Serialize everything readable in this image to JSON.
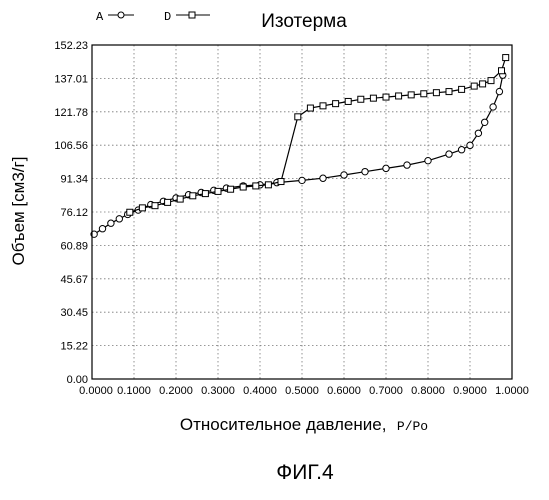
{
  "chart_data": {
    "type": "line",
    "title": "Изотерма",
    "xlabel": "Относительное давление,",
    "xlabel_suffix": "P/Po",
    "ylabel": "Объем [см3/г]",
    "caption": "ФИГ.4",
    "xlim": [
      0,
      1
    ],
    "ylim": [
      0,
      152.23
    ],
    "x_ticks": [
      "0.0000",
      "0.1000",
      "0.2000",
      "0.3000",
      "0.4000",
      "0.5000",
      "0.6000",
      "0.7000",
      "0.8000",
      "0.9000",
      "1.0000"
    ],
    "x_tick_values": [
      0,
      0.1,
      0.2,
      0.3,
      0.4,
      0.5,
      0.6,
      0.7,
      0.8,
      0.9,
      1.0
    ],
    "y_ticks": [
      "0.00",
      "15.22",
      "30.45",
      "45.67",
      "60.89",
      "76.12",
      "91.34",
      "106.56",
      "121.78",
      "137.01",
      "152.23"
    ],
    "y_tick_values": [
      0,
      15.22,
      30.45,
      45.67,
      60.89,
      76.12,
      91.34,
      106.56,
      121.78,
      137.01,
      152.23
    ],
    "grid": true,
    "legend_position": "top-left",
    "series": [
      {
        "name": "A",
        "marker": "circle",
        "x": [
          0.005,
          0.025,
          0.045,
          0.065,
          0.085,
          0.11,
          0.14,
          0.17,
          0.2,
          0.23,
          0.26,
          0.29,
          0.32,
          0.36,
          0.4,
          0.44,
          0.5,
          0.55,
          0.6,
          0.65,
          0.7,
          0.75,
          0.8,
          0.85,
          0.88,
          0.9,
          0.92,
          0.935,
          0.955,
          0.97,
          0.978
        ],
        "y": [
          66.0,
          68.5,
          71.0,
          73.0,
          75.0,
          77.0,
          79.5,
          81.0,
          82.5,
          84.0,
          85.0,
          86.0,
          87.0,
          88.0,
          88.5,
          89.5,
          90.5,
          91.5,
          93.0,
          94.5,
          96.0,
          97.5,
          99.5,
          102.5,
          104.5,
          106.5,
          112.0,
          117.0,
          124.0,
          131.0,
          138.5
        ]
      },
      {
        "name": "D",
        "marker": "square",
        "x": [
          0.985,
          0.975,
          0.95,
          0.93,
          0.91,
          0.88,
          0.85,
          0.82,
          0.79,
          0.76,
          0.73,
          0.7,
          0.67,
          0.64,
          0.61,
          0.58,
          0.55,
          0.52,
          0.49,
          0.45,
          0.42,
          0.39,
          0.36,
          0.33,
          0.3,
          0.27,
          0.24,
          0.21,
          0.18,
          0.15,
          0.12,
          0.09
        ],
        "y": [
          146.5,
          140.5,
          136.0,
          134.5,
          133.5,
          132.0,
          131.0,
          130.5,
          130.0,
          129.5,
          129.0,
          128.5,
          128.0,
          127.5,
          126.5,
          125.5,
          124.5,
          123.5,
          119.5,
          90.0,
          88.5,
          88.0,
          87.5,
          86.5,
          85.5,
          84.5,
          83.5,
          82.0,
          80.5,
          79.0,
          78.0,
          76.0
        ]
      }
    ]
  }
}
